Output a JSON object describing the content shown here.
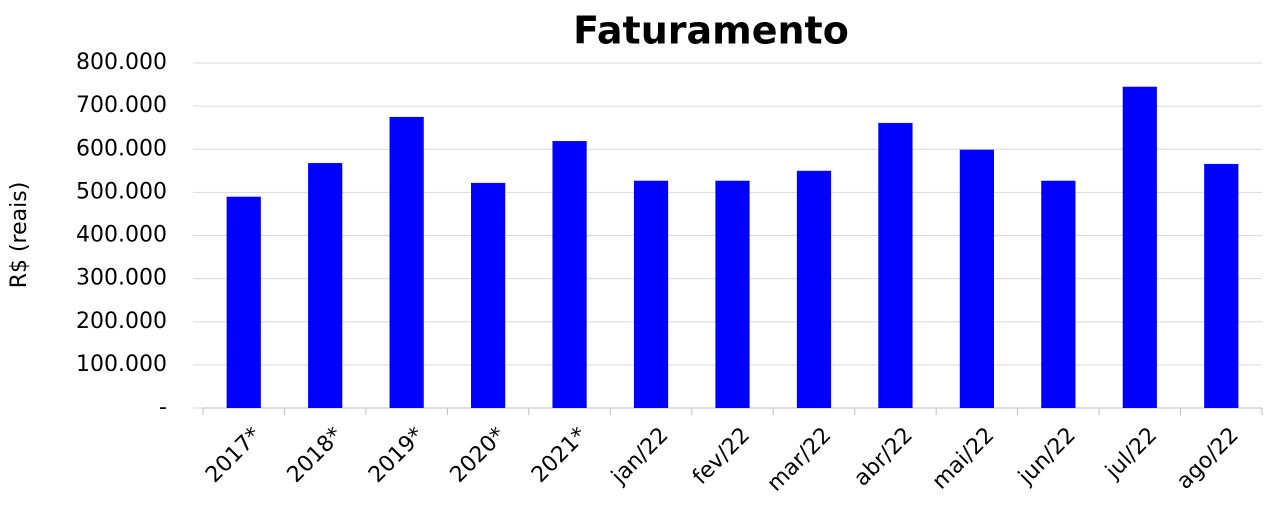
{
  "chart_data": {
    "type": "bar",
    "title": "Faturamento",
    "y_label": "R$ (reais)",
    "categories": [
      "2017*",
      "2018*",
      "2019*",
      "2020*",
      "2021*",
      "jan/22",
      "fev/22",
      "mar/22",
      "abr/22",
      "mai/22",
      "jun/22",
      "jul/22",
      "ago/22"
    ],
    "values": [
      490000,
      568000,
      675000,
      522000,
      619000,
      527000,
      527000,
      550000,
      661000,
      599000,
      527000,
      745000,
      566000
    ],
    "color": "#0000ff",
    "ylim": [
      0,
      800000
    ],
    "yticks": [
      {
        "value": 0,
        "label": "-"
      },
      {
        "value": 100000,
        "label": "100.000"
      },
      {
        "value": 200000,
        "label": "200.000"
      },
      {
        "value": 300000,
        "label": "300.000"
      },
      {
        "value": 400000,
        "label": "400.000"
      },
      {
        "value": 500000,
        "label": "500.000"
      },
      {
        "value": 600000,
        "label": "600.000"
      },
      {
        "value": 700000,
        "label": "700.000"
      },
      {
        "value": 800000,
        "label": "800.000"
      }
    ],
    "grid": true
  }
}
